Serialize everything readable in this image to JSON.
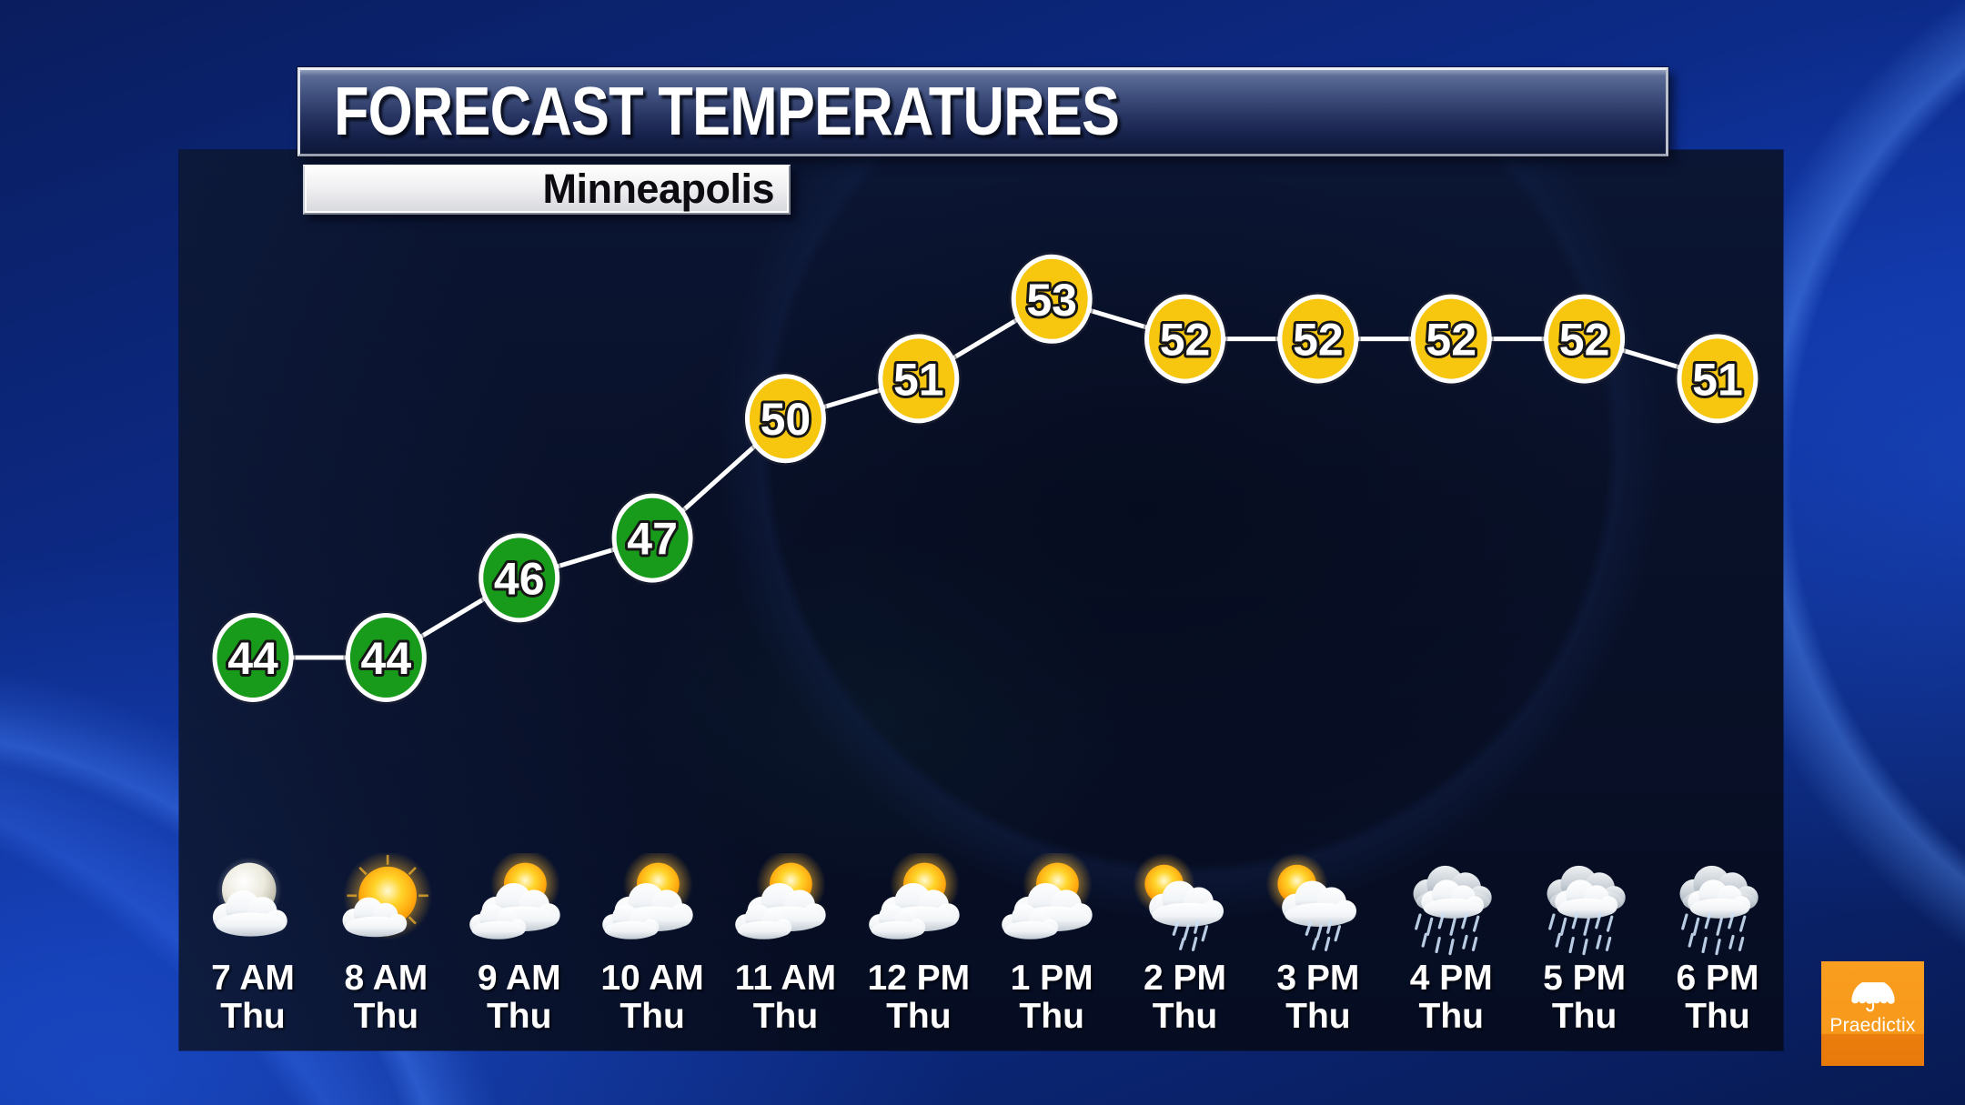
{
  "header": {
    "title": "FORECAST TEMPERATURES",
    "location": "Minneapolis"
  },
  "brand": {
    "name": "Praedictix"
  },
  "chart_data": {
    "type": "line",
    "title": "FORECAST TEMPERATURES",
    "location": "Minneapolis",
    "categories": [
      "7 AM",
      "8 AM",
      "9 AM",
      "10 AM",
      "11 AM",
      "12 PM",
      "1 PM",
      "2 PM",
      "3 PM",
      "4 PM",
      "5 PM",
      "6 PM"
    ],
    "day": "Thu",
    "values": [
      44,
      44,
      46,
      47,
      50,
      51,
      53,
      52,
      52,
      52,
      52,
      51
    ],
    "point_colors": [
      "#189a1b",
      "#189a1b",
      "#189a1b",
      "#189a1b",
      "#f7c60e",
      "#f7c60e",
      "#f7c60e",
      "#f7c60e",
      "#f7c60e",
      "#f7c60e",
      "#f7c60e",
      "#f7c60e"
    ],
    "conditions": [
      "mostly-cloudy-night",
      "partly-cloudy",
      "cloudy-sun",
      "cloudy-sun",
      "cloudy-sun",
      "cloudy-sun",
      "cloudy-sun",
      "sun-rain",
      "sun-rain",
      "rain",
      "rain",
      "rain"
    ],
    "line_color": "#ffffff",
    "ylim": [
      43,
      54
    ],
    "grid": false,
    "legend": false
  }
}
